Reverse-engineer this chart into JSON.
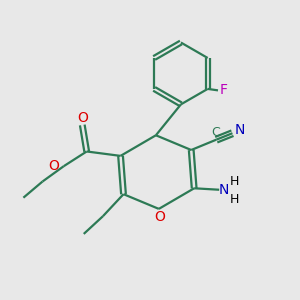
{
  "background_color": "#e8e8e8",
  "bond_color": "#2d7a55",
  "o_color": "#dd0000",
  "n_color": "#0000bb",
  "f_color": "#bb00bb",
  "text_color": "#000000",
  "figsize": [
    3.0,
    3.0
  ],
  "dpi": 100,
  "xlim": [
    0,
    10
  ],
  "ylim": [
    0,
    10
  ]
}
